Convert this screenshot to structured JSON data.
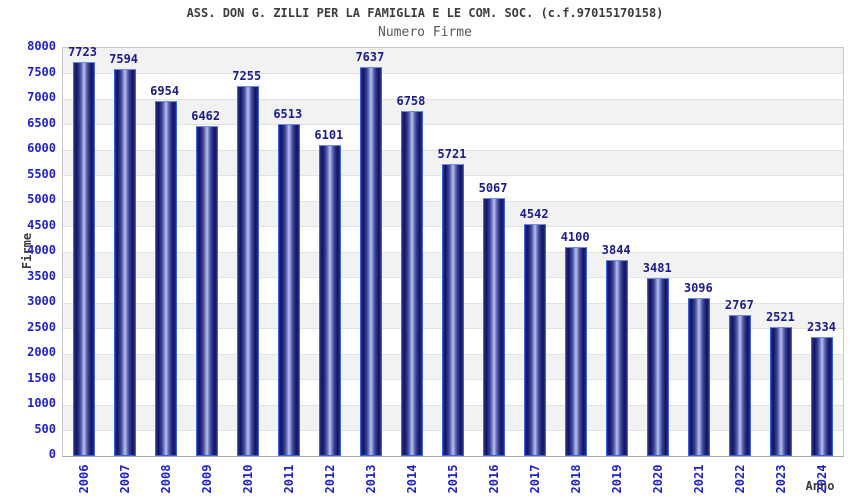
{
  "header": {
    "title": "ASS. DON G. ZILLI PER LA FAMIGLIA E LE COM. SOC. (c.f.97015170158)",
    "subtitle": "Numero Firme"
  },
  "chart_data": {
    "type": "bar",
    "title": "ASS. DON G. ZILLI PER LA FAMIGLIA E LE COM. SOC. (c.f.97015170158)",
    "subtitle": "Numero Firme",
    "xlabel": "Anno",
    "ylabel": "Firme",
    "categories": [
      "2006",
      "2007",
      "2008",
      "2009",
      "2010",
      "2011",
      "2012",
      "2013",
      "2014",
      "2015",
      "2016",
      "2017",
      "2018",
      "2019",
      "2020",
      "2021",
      "2022",
      "2023",
      "2024"
    ],
    "values": [
      7723,
      7594,
      6954,
      6462,
      7255,
      6513,
      6101,
      7637,
      6758,
      5721,
      5067,
      4542,
      4100,
      3844,
      3481,
      3096,
      2767,
      2521,
      2334
    ],
    "ylim": [
      0,
      8000
    ],
    "ytick_step": 500,
    "grid": true,
    "legend": "none",
    "colors": {
      "bar_dark": "#131360",
      "bar_light": "#c6ccf0",
      "bar_border": "#3d63e0",
      "axis_tick_text": "#2121cd",
      "value_label_text": "#1b1b8a",
      "title_text": "#3c3c3c",
      "subtitle_text": "#5a5a5a",
      "band": "#f2f2f2",
      "gridline": "#e2e2e2"
    }
  }
}
